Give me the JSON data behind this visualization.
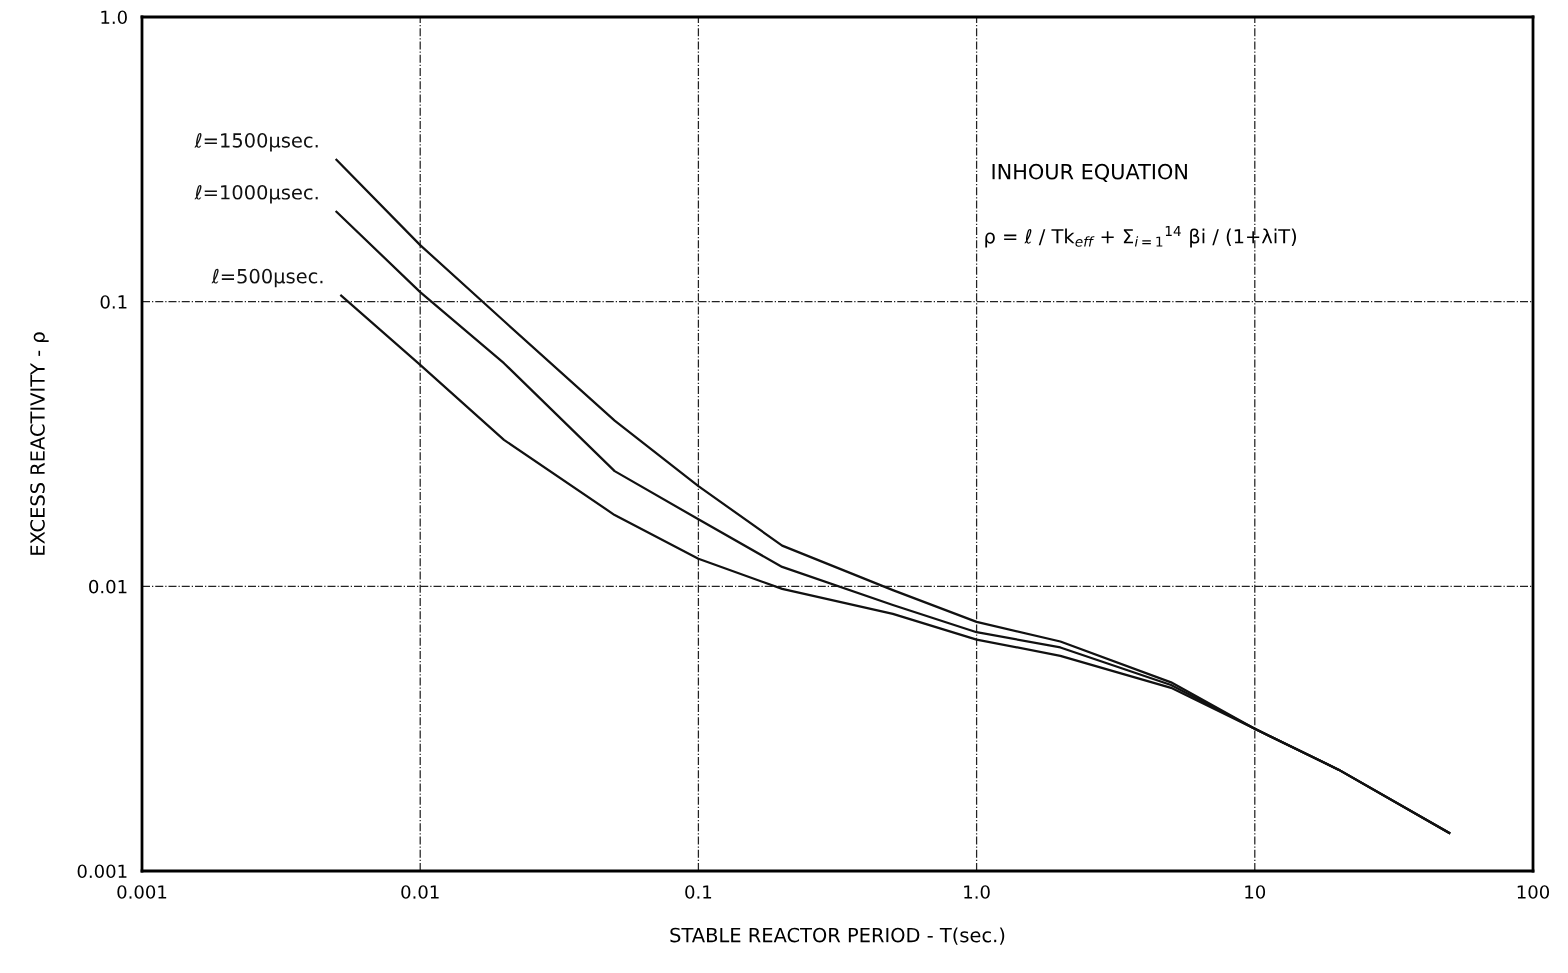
{
  "chart_data": {
    "type": "line",
    "xlabel": "STABLE REACTOR PERIOD - T(sec.)",
    "ylabel": "EXCESS REACTIVITY - ρ",
    "log": "xy",
    "xlim": [
      0.001,
      100
    ],
    "ylim": [
      0.001,
      1
    ],
    "xticks": [
      0.001,
      0.01,
      0.1,
      {
        "value": 1,
        "label": "1.0"
      },
      10,
      100
    ],
    "yticks": [
      0.001,
      0.01,
      0.1,
      {
        "value": 1,
        "label": "1.0"
      }
    ],
    "grid": true,
    "legend": false,
    "marker": "none",
    "line_style": "solid",
    "annotations": [
      "INHOUR EQUATION",
      "ρ = ℓ / Tk$_{eff}$ + Σ$_{i=1}$$^{14}$ βi / (1+λiT)"
    ],
    "series": [
      {
        "name": "ℓ=1500μsec.",
        "color": "#111111",
        "x": [
          0.005,
          0.01,
          0.02,
          0.05,
          0.1,
          0.2,
          0.5,
          1,
          2,
          5,
          10,
          20,
          50
        ],
        "values": [
          0.315,
          0.158,
          0.0855,
          0.0382,
          0.0225,
          0.0139,
          0.0097,
          0.0075,
          0.0064,
          0.0046,
          0.00316,
          0.00227,
          0.00136
        ]
      },
      {
        "name": "ℓ=1000μsec.",
        "color": "#111111",
        "x": [
          0.005,
          0.01,
          0.02,
          0.05,
          0.1,
          0.2,
          0.5,
          1,
          2,
          5,
          10,
          20,
          50
        ],
        "values": [
          0.207,
          0.108,
          0.0608,
          0.0254,
          0.0172,
          0.0117,
          0.0086,
          0.0069,
          0.0061,
          0.0045,
          0.00316,
          0.00227,
          0.00136
        ]
      },
      {
        "name": "ℓ=500μsec.",
        "color": "#111111",
        "x": [
          0.0052,
          0.01,
          0.02,
          0.05,
          0.1,
          0.2,
          0.5,
          1,
          2,
          5,
          10,
          20,
          50
        ],
        "values": [
          0.105,
          0.06,
          0.0327,
          0.0178,
          0.0125,
          0.0098,
          0.008,
          0.0065,
          0.0057,
          0.0044,
          0.00316,
          0.00227,
          0.00136
        ]
      }
    ]
  }
}
